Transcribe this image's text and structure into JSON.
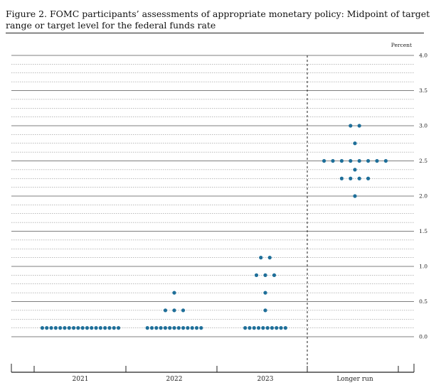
{
  "figure": {
    "title": "Figure 2.  FOMC participants’ assessments of appropriate monetary policy:  Midpoint of target range or target level for the federal funds rate"
  },
  "chart_data": {
    "type": "scatter",
    "subtype": "dot-plot",
    "title": "Figure 2.  FOMC participants’ assessments of appropriate monetary policy:  Midpoint of target range or target level for the federal funds rate",
    "unit_label": "Percent",
    "categories": [
      "2021",
      "2022",
      "2023",
      "Longer run"
    ],
    "ylim": [
      0,
      4.0
    ],
    "yticks": [
      "0.0",
      "0.5",
      "1.0",
      "1.5",
      "2.0",
      "2.5",
      "3.0",
      "3.5",
      "4.0"
    ],
    "grid": "horizontal lines every 0.125 percent (dotted), solid at each 0.5",
    "divider": "dashed vertical line before Longer run",
    "marker_color": "#1f6f99",
    "series": [
      {
        "category": "2021",
        "dots": [
          {
            "y": 0.125,
            "count": 18
          }
        ]
      },
      {
        "category": "2022",
        "dots": [
          {
            "y": 0.125,
            "count": 13
          },
          {
            "y": 0.375,
            "count": 3
          },
          {
            "y": 0.625,
            "count": 1
          }
        ]
      },
      {
        "category": "2023",
        "dots": [
          {
            "y": 0.125,
            "count": 10
          },
          {
            "y": 0.375,
            "count": 1
          },
          {
            "y": 0.625,
            "count": 1
          },
          {
            "y": 0.875,
            "count": 3
          },
          {
            "y": 1.125,
            "count": 2
          }
        ]
      },
      {
        "category": "Longer run",
        "dots": [
          {
            "y": 2.0,
            "count": 1
          },
          {
            "y": 2.25,
            "count": 4
          },
          {
            "y": 2.375,
            "count": 1
          },
          {
            "y": 2.5,
            "count": 8
          },
          {
            "y": 2.75,
            "count": 1
          },
          {
            "y": 3.0,
            "count": 2
          }
        ]
      }
    ]
  }
}
